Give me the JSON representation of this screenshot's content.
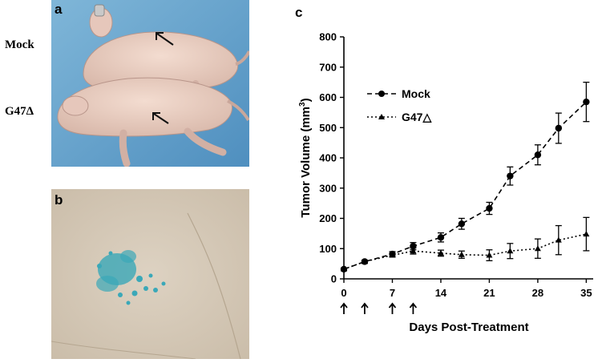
{
  "figure": {
    "side_labels": {
      "mock": "Mock",
      "g47": "G47Δ"
    },
    "panels": {
      "a": "a",
      "b": "b",
      "c": "c"
    }
  },
  "chart_data": {
    "type": "line",
    "xlabel": "Days Post-Treatment",
    "ylabel": "Tumor Volume (mm³)",
    "ylabel_parts": {
      "main": "Tumor Volume (mm",
      "sup": "3",
      "close": ")"
    },
    "xlim": [
      0,
      36
    ],
    "ylim": [
      0,
      800
    ],
    "x_ticks": [
      0,
      7,
      14,
      21,
      28,
      35
    ],
    "y_ticks": [
      0,
      100,
      200,
      300,
      400,
      500,
      600,
      700,
      800
    ],
    "treatment_days": [
      0,
      3,
      7,
      10
    ],
    "legend_position": "upper-left",
    "series": [
      {
        "name": "Mock",
        "marker": "circle",
        "line_style": "dashed",
        "x": [
          0,
          3,
          7,
          10,
          14,
          17,
          21,
          24,
          28,
          31,
          35
        ],
        "y": [
          32,
          57,
          82,
          108,
          137,
          182,
          233,
          340,
          410,
          498,
          585
        ],
        "err": [
          4,
          5,
          8,
          12,
          15,
          18,
          20,
          30,
          33,
          50,
          65
        ]
      },
      {
        "name": "G47△",
        "marker": "triangle",
        "line_style": "dotted",
        "x": [
          0,
          3,
          7,
          10,
          14,
          17,
          21,
          24,
          28,
          31,
          35
        ],
        "y": [
          32,
          57,
          78,
          92,
          85,
          80,
          78,
          92,
          100,
          128,
          148
        ],
        "err": [
          3,
          4,
          6,
          10,
          10,
          12,
          18,
          25,
          32,
          48,
          55
        ]
      }
    ]
  }
}
